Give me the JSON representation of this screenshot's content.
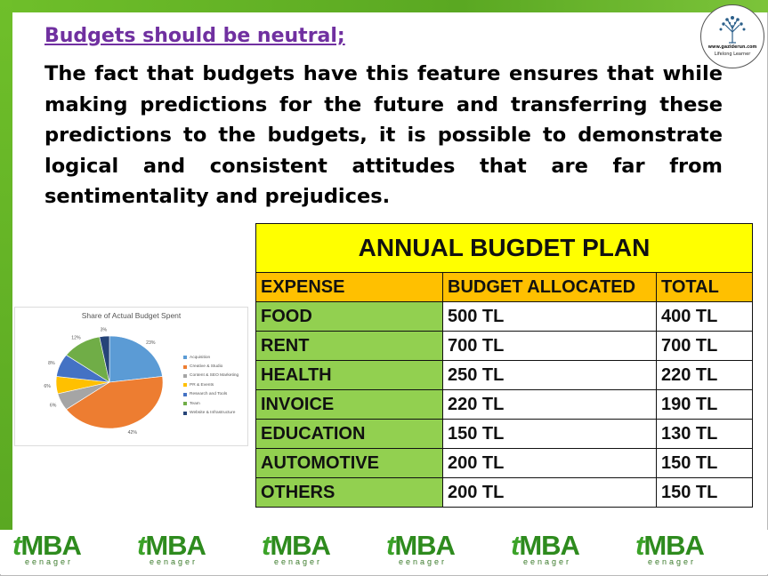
{
  "slide": {
    "heading": "Budgets should be neutral;",
    "body": "The fact that budgets have this feature ensures that while making predictions for the future and transferring these predictions to the budgets, it is possible to demonstrate logical and consistent attitudes that are far from sentimentality and prejudices.",
    "logo": {
      "url": "www.gaziderun.com",
      "tagline": "Lifelong Learner",
      "icon": "tree-icon"
    }
  },
  "table": {
    "title": "ANNUAL BUGDET PLAN",
    "headers": [
      "EXPENSE",
      "BUDGET ALLOCATED",
      "TOTAL"
    ],
    "rows": [
      [
        "FOOD",
        "500 TL",
        "400 TL"
      ],
      [
        "RENT",
        "700 TL",
        "700 TL"
      ],
      [
        "HEALTH",
        "250 TL",
        "220 TL"
      ],
      [
        "INVOICE",
        "220 TL",
        "190 TL"
      ],
      [
        "EDUCATION",
        "150 TL",
        "130 TL"
      ],
      [
        "AUTOMOTIVE",
        "200 TL",
        "150 TL"
      ],
      [
        "OTHERS",
        "200 TL",
        "150 TL"
      ]
    ],
    "colors": {
      "title_bg": "#ffff00",
      "header_bg": "#ffc000",
      "category_bg": "#92d050"
    }
  },
  "chart_data": {
    "type": "pie",
    "title": "Share of Actual Budget Spent",
    "legend_position": "right",
    "slices": [
      {
        "name": "Acquisition",
        "value": 23,
        "label": "23%",
        "color": "#5b9bd5"
      },
      {
        "name": "Creative & Studio",
        "value": 42,
        "label": "42%",
        "color": "#ed7d31"
      },
      {
        "name": "Content & SEO Marketing",
        "value": 6,
        "label": "6%",
        "color": "#a5a5a5"
      },
      {
        "name": "PR & Events",
        "value": 6,
        "label": "6%",
        "color": "#ffc000"
      },
      {
        "name": "Research and Tools",
        "value": 8,
        "label": "8%",
        "color": "#4472c4"
      },
      {
        "name": "Team",
        "value": 12,
        "label": "12%",
        "color": "#70ad47"
      },
      {
        "name": "Website & Infrastructure",
        "value": 3,
        "label": "3%",
        "color": "#264478"
      }
    ]
  },
  "footer": {
    "brand_main": "MBA",
    "brand_prefix": "t",
    "brand_sub": "eenager",
    "count": 6,
    "color": "#2e8b1e"
  }
}
